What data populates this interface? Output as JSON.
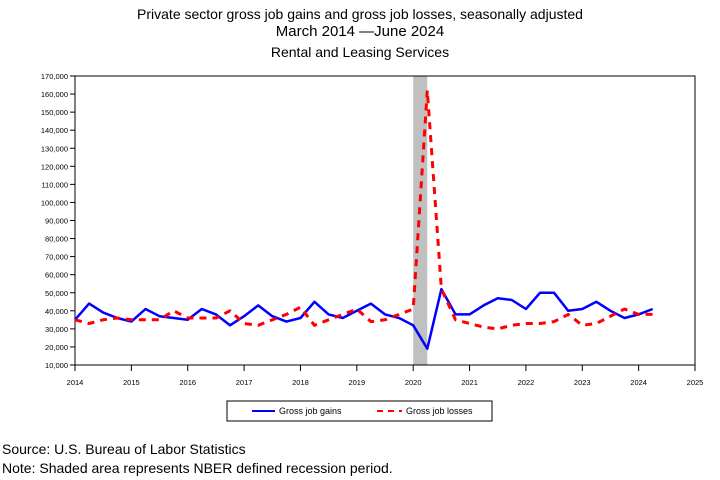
{
  "title_line1": "Private sector gross job gains and gross job losses, seasonally adjusted",
  "title_line2": "March 2014 —June 2024",
  "title_line3": "Rental and Leasing Services",
  "source": "Source: U.S. Bureau of Labor Statistics",
  "note": "Note: Shaded area represents NBER defined recession period.",
  "colors": {
    "gains": "#0000ff",
    "losses": "#ff0000",
    "recession": "#c0c0c0"
  },
  "chart_data": {
    "type": "line",
    "x_tick_labels": [
      "2014",
      "2015",
      "2016",
      "2017",
      "2018",
      "2019",
      "2020",
      "2021",
      "2022",
      "2023",
      "2024",
      "2025"
    ],
    "y_tick_labels": [
      "10,000",
      "20,000",
      "30,000",
      "40,000",
      "50,000",
      "60,000",
      "70,000",
      "80,000",
      "90,000",
      "100,000",
      "110,000",
      "120,000",
      "130,000",
      "140,000",
      "150,000",
      "160,000",
      "170,000"
    ],
    "xlim": [
      2014,
      2025
    ],
    "ylim": [
      10000,
      170000
    ],
    "recession": [
      2020.0,
      2020.25
    ],
    "legend_placement": "bottom-center",
    "x": [
      2014.0,
      2014.25,
      2014.5,
      2014.75,
      2015.0,
      2015.25,
      2015.5,
      2015.75,
      2016.0,
      2016.25,
      2016.5,
      2016.75,
      2017.0,
      2017.25,
      2017.5,
      2017.75,
      2018.0,
      2018.25,
      2018.5,
      2018.75,
      2019.0,
      2019.25,
      2019.5,
      2019.75,
      2020.0,
      2020.25,
      2020.5,
      2020.75,
      2021.0,
      2021.25,
      2021.5,
      2021.75,
      2022.0,
      2022.25,
      2022.5,
      2022.75,
      2023.0,
      2023.25,
      2023.5,
      2023.75,
      2024.0,
      2024.25
    ],
    "series": [
      {
        "name": "Gross job gains",
        "style": "solid",
        "values": [
          35000,
          44000,
          39000,
          36000,
          34000,
          41000,
          37000,
          36000,
          35000,
          41000,
          38000,
          32000,
          37000,
          43000,
          37000,
          34000,
          36000,
          45000,
          38000,
          36000,
          40000,
          44000,
          38000,
          36000,
          32000,
          19000,
          52000,
          38000,
          38000,
          43000,
          47000,
          46000,
          41000,
          50000,
          50000,
          40000,
          41000,
          45000,
          40000,
          36000,
          38000,
          41000
        ]
      },
      {
        "name": "Gross job losses",
        "style": "dashed",
        "values": [
          35000,
          33000,
          35000,
          36000,
          35000,
          35000,
          35000,
          40000,
          36000,
          36000,
          36000,
          40000,
          33000,
          32000,
          35000,
          38000,
          42000,
          32000,
          35000,
          38000,
          41000,
          34000,
          35000,
          38000,
          41000,
          162000,
          52000,
          35000,
          33000,
          31000,
          30000,
          32000,
          33000,
          33000,
          34000,
          38000,
          32000,
          33000,
          37000,
          41000,
          38000,
          38000
        ]
      }
    ]
  }
}
